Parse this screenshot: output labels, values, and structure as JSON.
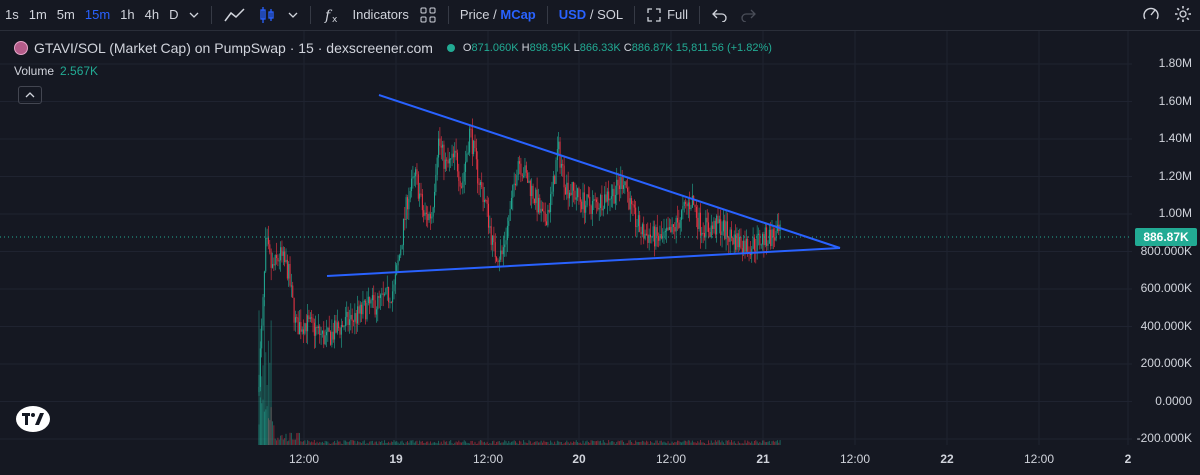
{
  "toolbar": {
    "intervals": [
      "1s",
      "1m",
      "5m",
      "15m",
      "1h",
      "4h",
      "D"
    ],
    "active_interval": "15m",
    "indicators_label": "Indicators",
    "price_label": "Price",
    "mcap_label": "MCap",
    "usd_label": "USD",
    "sol_label": "SOL",
    "full_label": "Full",
    "slash": "/"
  },
  "legend": {
    "title": "GTAVI/SOL (Market Cap) on PumpSwap · 15 · dexscreener.com",
    "o_label": "O",
    "o_value": "871.060K",
    "h_label": "H",
    "h_value": "898.95K",
    "l_label": "L",
    "l_value": "866.33K",
    "c_label": "C",
    "c_value": "886.87K",
    "change": "15,811.56 (+1.82%)",
    "volume_label": "Volume",
    "volume_value": "2.567K"
  },
  "price_axis": {
    "labels": [
      "1.80M",
      "1.60M",
      "1.40M",
      "1.20M",
      "1.00M",
      "800.000K",
      "600.000K",
      "400.000K",
      "200.000K",
      "0.0000",
      "-200.000K"
    ],
    "last_price": "886.87K"
  },
  "time_axis": {
    "labels": [
      "12:00",
      "19",
      "12:00",
      "20",
      "12:00",
      "21",
      "12:00",
      "22",
      "12:00",
      "2"
    ]
  },
  "colors": {
    "up": "#22ab94",
    "down": "#f23645",
    "trendline": "#2962ff",
    "background": "#151822"
  },
  "chart_data": {
    "type": "candlestick",
    "y_unit": "market cap (USD)",
    "trendlines": [
      {
        "from": {
          "x": "18 16:00",
          "y": 1640000
        },
        "to": {
          "x": "21 20:00",
          "y": 830000
        }
      },
      {
        "from": {
          "x": "18 12:30",
          "y": 670000
        },
        "to": {
          "x": "21 20:00",
          "y": 830000
        }
      }
    ],
    "ylim": [
      -200000,
      1800000
    ]
  }
}
